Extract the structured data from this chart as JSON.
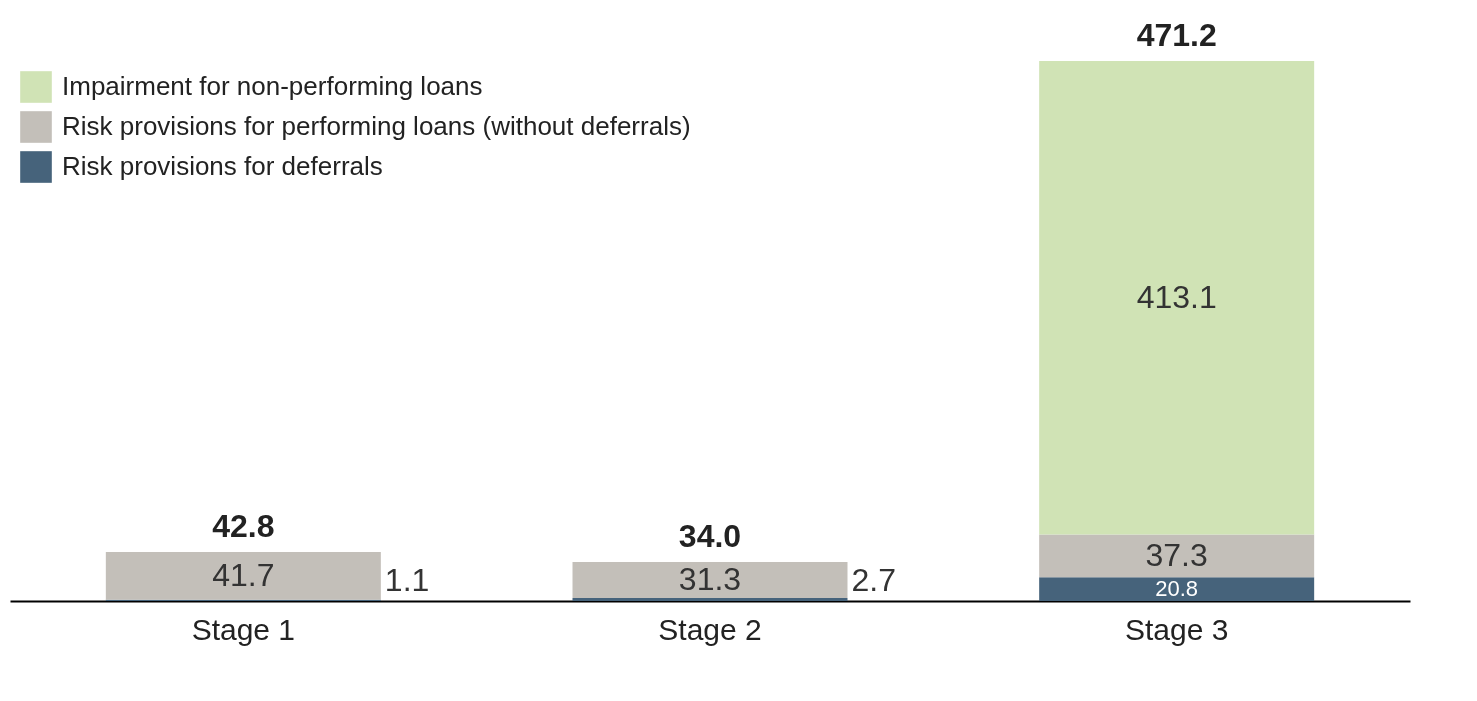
{
  "chart_data": {
    "type": "bar",
    "stacked": true,
    "categories": [
      "Stage 1",
      "Stage 2",
      "Stage 3"
    ],
    "series": [
      {
        "name": "Risk provisions for deferrals",
        "color": "#46637b",
        "values": [
          1.1,
          2.7,
          20.8
        ]
      },
      {
        "name": "Risk provisions for performing loans (without deferrals)",
        "color": "#c3bfb9",
        "values": [
          41.7,
          31.3,
          37.3
        ]
      },
      {
        "name": "Impairment for non-performing loans",
        "color": "#d0e3b5",
        "values": [
          null,
          null,
          413.1
        ]
      }
    ],
    "data_labels": true,
    "totals": [
      "42.8",
      "34.0",
      "471.2"
    ],
    "legend": "top left"
  }
}
